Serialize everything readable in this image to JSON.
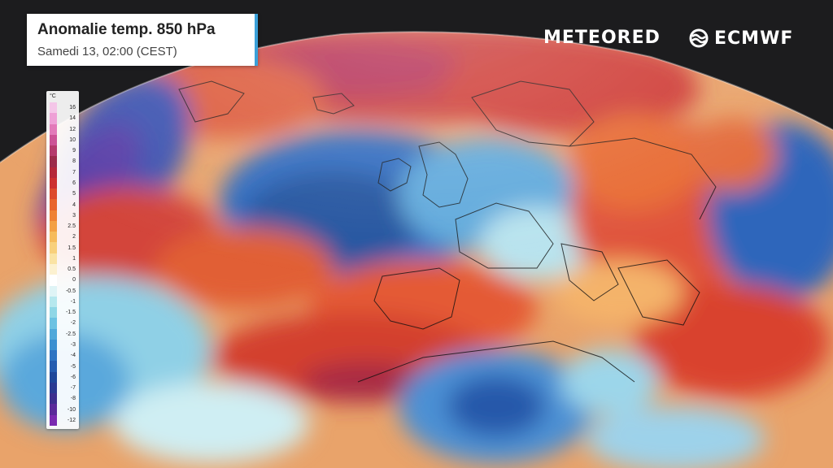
{
  "title": {
    "main": "Anomalie temp. 850 hPa",
    "sub": "Samedi 13, 02:00 (CEST)"
  },
  "branding": {
    "meteored": "METEORED",
    "ecmwf": "ECMWF"
  },
  "legend": {
    "unit": "°C",
    "stops": [
      {
        "label": "16",
        "color": "#f4c6e8"
      },
      {
        "label": "14",
        "color": "#eea0d6"
      },
      {
        "label": "12",
        "color": "#e27ab9"
      },
      {
        "label": "10",
        "color": "#cc5396"
      },
      {
        "label": "9",
        "color": "#b53a6c"
      },
      {
        "label": "8",
        "color": "#9c2b4a"
      },
      {
        "label": "7",
        "color": "#b5283a"
      },
      {
        "label": "6",
        "color": "#cc3030"
      },
      {
        "label": "5",
        "color": "#dd4a2c"
      },
      {
        "label": "4",
        "color": "#e8642c"
      },
      {
        "label": "3",
        "color": "#ef8235"
      },
      {
        "label": "2.5",
        "color": "#f3a044"
      },
      {
        "label": "2",
        "color": "#f6bb5c"
      },
      {
        "label": "1.5",
        "color": "#f8d07c"
      },
      {
        "label": "1",
        "color": "#fae3a4"
      },
      {
        "label": "0.5",
        "color": "#fcf1d0"
      },
      {
        "label": "0",
        "color": "#ffffff"
      },
      {
        "label": "-0.5",
        "color": "#dff4f6"
      },
      {
        "label": "-1",
        "color": "#b6e8ee"
      },
      {
        "label": "-1.5",
        "color": "#8fd7e6"
      },
      {
        "label": "-2",
        "color": "#6cc2e2"
      },
      {
        "label": "-2.5",
        "color": "#4fa8da"
      },
      {
        "label": "-3",
        "color": "#3b8fd0"
      },
      {
        "label": "-4",
        "color": "#2e74c2"
      },
      {
        "label": "-5",
        "color": "#245cb0"
      },
      {
        "label": "-6",
        "color": "#1e479a"
      },
      {
        "label": "-7",
        "color": "#2a3a92"
      },
      {
        "label": "-8",
        "color": "#3d2f8e"
      },
      {
        "label": "-10",
        "color": "#5a2a9a"
      },
      {
        "label": "-12",
        "color": "#7a2ab0"
      }
    ]
  },
  "colors": {
    "background": "#1c1c1e",
    "accent": "#3aa0d8"
  }
}
